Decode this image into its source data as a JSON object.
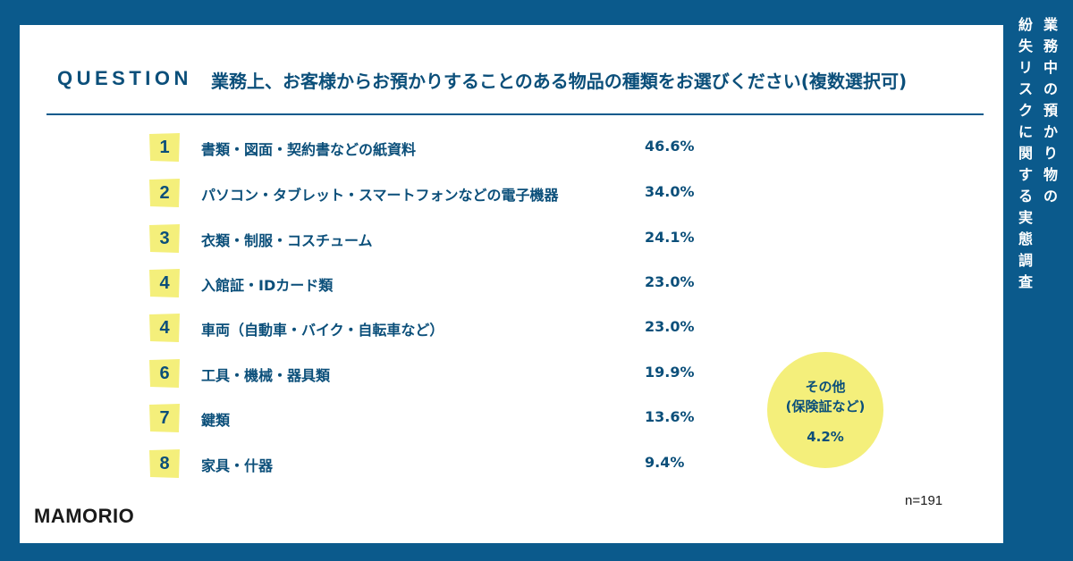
{
  "header": {
    "label": "QUESTION",
    "question": "業務上、お客様からお預かりすることのある物品の種類をお選びください(複数選択可)"
  },
  "items": [
    {
      "rank": "1",
      "label": "書類・図面・契約書などの紙資料",
      "value": "46.6%"
    },
    {
      "rank": "2",
      "label": "パソコン・タブレット・スマートフォンなどの電子機器",
      "value": "34.0%"
    },
    {
      "rank": "3",
      "label": "衣類・制服・コスチューム",
      "value": "24.1%"
    },
    {
      "rank": "4",
      "label": "入館証・IDカード類",
      "value": "23.0%"
    },
    {
      "rank": "4",
      "label": "車両（自動車・バイク・自転車など）",
      "value": "23.0%"
    },
    {
      "rank": "6",
      "label": "工具・機械・器具類",
      "value": "19.9%"
    },
    {
      "rank": "7",
      "label": "鍵類",
      "value": "13.6%"
    },
    {
      "rank": "8",
      "label": "家具・什器",
      "value": "9.4%"
    }
  ],
  "other": {
    "line1": "その他",
    "line2": "(保険証など)",
    "value": "4.2%"
  },
  "sample_size": "n=191",
  "logo": "MAMORIO",
  "side_title": {
    "line1": "業務中の預かり物の",
    "line2": "紛失リスクに関する実態調査"
  },
  "colors": {
    "background": "#0b5a8c",
    "accent_text": "#0b4f7a",
    "highlight": "#f4ef7b"
  }
}
